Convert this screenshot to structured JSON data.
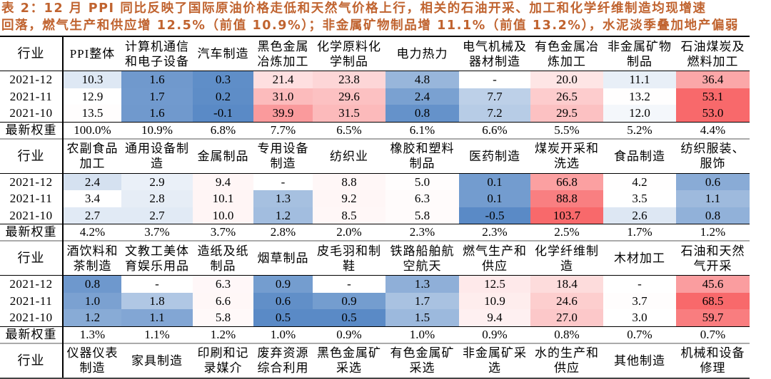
{
  "title": {
    "line1": "表 2：12 月 PPI 同比反映了国际原油价格走低和天然气价格上行，相关的石油开采、加工和化学纤维制造均现增速",
    "line2": "回落，燃气生产和供应增 12.5%（前值 10.9%）；非金属矿物制品增 11.1%（前值 13.2%），水泥淡季叠加地产偏弱"
  },
  "labels": {
    "industry": "行业",
    "weight": "最新权重"
  },
  "colors": {
    "low": "#5a8ac6",
    "mid": "#ffffff",
    "high": "#f8696b"
  },
  "sections": [
    {
      "headers": [
        "PPI整体",
        "计算机通信和电子设备",
        "汽车制造",
        "黑色金属冶炼加工",
        "化学原料化学制品",
        "电力热力",
        "电气机械及器材制造",
        "有色金属冶炼加工",
        "非金属矿物制品",
        "石油煤炭及燃料加工"
      ],
      "rows": [
        {
          "date": "2021-12",
          "values": [
            "10.3",
            "1.6",
            "0.3",
            "21.4",
            "23.8",
            "4.8",
            "-",
            "20.0",
            "11.1",
            "36.4"
          ]
        },
        {
          "date": "2021-11",
          "values": [
            "12.9",
            "1.7",
            "0.2",
            "31.0",
            "29.6",
            "2.4",
            "7.7",
            "26.5",
            "13.2",
            "53.1"
          ]
        },
        {
          "date": "2021-10",
          "values": [
            "13.5",
            "1.6",
            "-0.1",
            "39.9",
            "31.5",
            "0.8",
            "7.2",
            "29.5",
            "12.0",
            "53.0"
          ]
        }
      ],
      "weights": [
        "100.0%",
        "10.9%",
        "6.8%",
        "7.7%",
        "6.5%",
        "6.1%",
        "6.6%",
        "5.5%",
        "5.2%",
        "4.4%"
      ]
    },
    {
      "headers": [
        "农副食品加工",
        "通用设备制造",
        "金属制品",
        "专用设备制造",
        "纺织业",
        "橡胶和塑料制品",
        "医药制造",
        "煤炭开采和洗选",
        "食品制造",
        "纺织服装、服饰"
      ],
      "rows": [
        {
          "date": "2021-12",
          "values": [
            "2.4",
            "2.9",
            "9.4",
            "-",
            "8.8",
            "5.0",
            "0.1",
            "66.8",
            "4.2",
            "0.6"
          ]
        },
        {
          "date": "2021-11",
          "values": [
            "3.4",
            "2.8",
            "10.1",
            "1.3",
            "9.2",
            "6.3",
            "0.1",
            "88.8",
            "3.5",
            "1.1"
          ]
        },
        {
          "date": "2021-10",
          "values": [
            "2.7",
            "2.7",
            "10.0",
            "1.2",
            "8.5",
            "5.8",
            "-0.5",
            "103.7",
            "2.6",
            "0.8"
          ]
        }
      ],
      "weights": [
        "4.2%",
        "3.7%",
        "3.7%",
        "2.8%",
        "2.0%",
        "2.3%",
        "2.3%",
        "2.5%",
        "1.7%",
        "1.2%"
      ]
    },
    {
      "headers": [
        "酒饮料和茶制造",
        "文教工美体育娱乐用品",
        "造纸及纸制品",
        "烟草制品",
        "皮毛羽和制鞋",
        "铁路船舶航空航天",
        "燃气生产和供应",
        "化学纤维制造",
        "木材加工",
        "石油和天然气开采"
      ],
      "rows": [
        {
          "date": "2021-12",
          "values": [
            "0.8",
            "-",
            "6.3",
            "0.9",
            "-",
            "1.3",
            "12.5",
            "18.4",
            "-",
            "45.6"
          ]
        },
        {
          "date": "2021-11",
          "values": [
            "1.0",
            "1.8",
            "6.6",
            "0.6",
            "0.9",
            "1.7",
            "10.9",
            "24.6",
            "3.7",
            "68.5"
          ]
        },
        {
          "date": "2021-10",
          "values": [
            "1.2",
            "1.1",
            "5.8",
            "0.5",
            "0.5",
            "1.5",
            "9.4",
            "27.0",
            "3.0",
            "59.7"
          ]
        }
      ],
      "weights": [
        "1.3%",
        "1.1%",
        "1.2%",
        "1.0%",
        "0.9%",
        "1.0%",
        "0.9%",
        "0.8%",
        "0.7%",
        "0.7%"
      ]
    },
    {
      "headers": [
        "仪器仪表制造",
        "家具制造",
        "印刷和记录媒介",
        "废弃资源综合利用",
        "黑色金属矿采选",
        "有色金属矿采选",
        "非金属矿采选",
        "水的生产和供应",
        "其他制造",
        "机械和设备修理"
      ]
    }
  ]
}
